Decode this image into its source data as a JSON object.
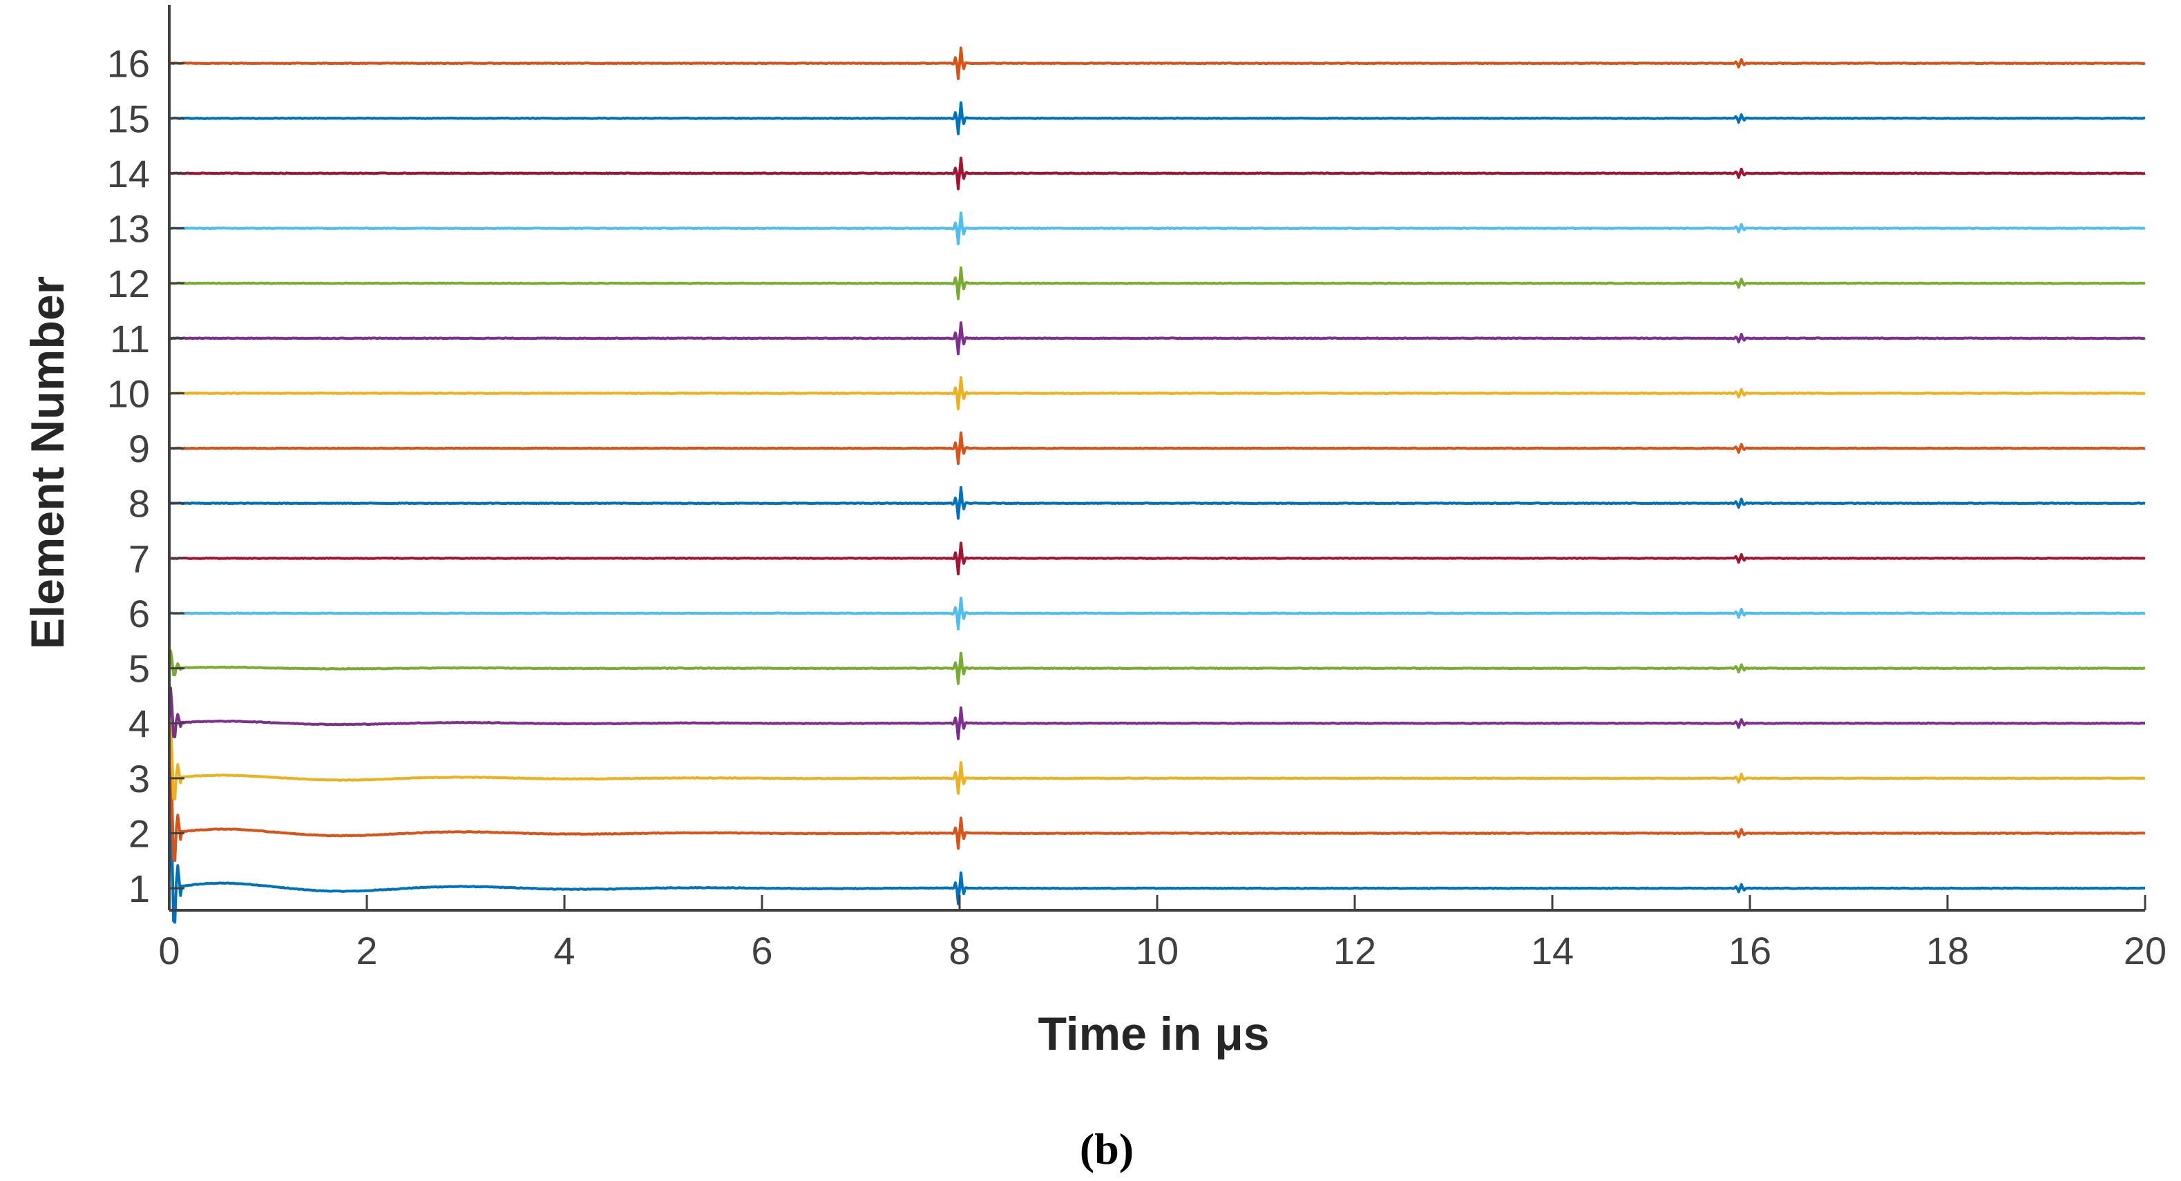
{
  "chart_data": {
    "type": "line",
    "xlabel": "Time in μs",
    "ylabel": "Element Number",
    "panel_label": "(b)",
    "xlim": [
      0,
      20
    ],
    "ylim": [
      0.6,
      17
    ],
    "x_ticks": [
      "0",
      "2",
      "4",
      "6",
      "8",
      "10",
      "12",
      "14",
      "16",
      "18",
      "20"
    ],
    "y_ticks": [
      "1",
      "2",
      "3",
      "4",
      "5",
      "6",
      "7",
      "8",
      "9",
      "10",
      "11",
      "12",
      "13",
      "14",
      "15",
      "16"
    ],
    "grid": false,
    "legend": "none",
    "echo_times": [
      8.0,
      15.9
    ],
    "series": [
      {
        "offset": 1,
        "color": "#0072BD"
      },
      {
        "offset": 2,
        "color": "#D95319"
      },
      {
        "offset": 3,
        "color": "#EDB120"
      },
      {
        "offset": 4,
        "color": "#7E2F8E"
      },
      {
        "offset": 5,
        "color": "#77AC30"
      },
      {
        "offset": 6,
        "color": "#4DBEEE"
      },
      {
        "offset": 7,
        "color": "#A2142F"
      },
      {
        "offset": 8,
        "color": "#0072BD"
      },
      {
        "offset": 9,
        "color": "#D95319"
      },
      {
        "offset": 10,
        "color": "#EDB120"
      },
      {
        "offset": 11,
        "color": "#7E2F8E"
      },
      {
        "offset": 12,
        "color": "#77AC30"
      },
      {
        "offset": 13,
        "color": "#4DBEEE"
      },
      {
        "offset": 14,
        "color": "#A2142F"
      },
      {
        "offset": 15,
        "color": "#0072BD"
      },
      {
        "offset": 16,
        "color": "#D95319"
      }
    ]
  }
}
